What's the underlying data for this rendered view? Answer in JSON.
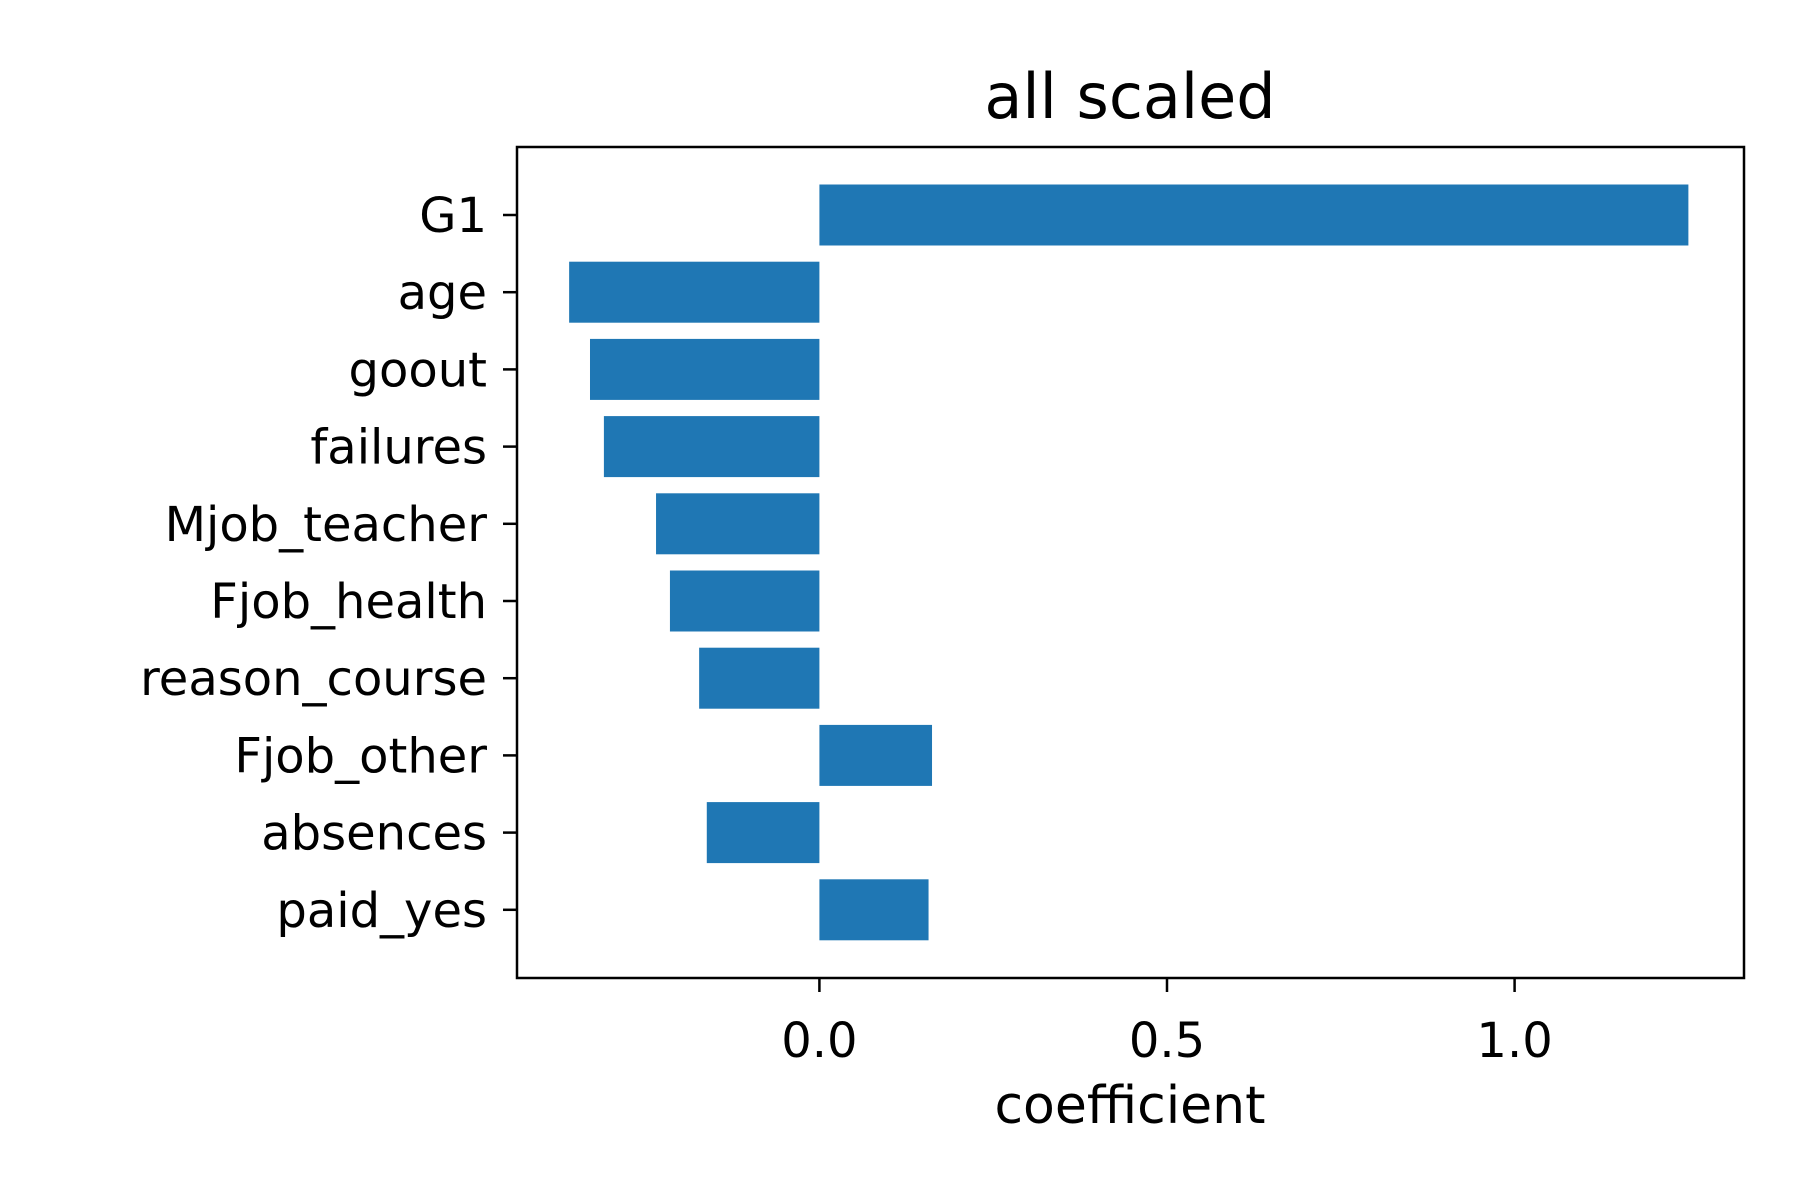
{
  "chart_data": {
    "type": "bar",
    "orientation": "horizontal",
    "title": "all scaled",
    "xlabel": "coefficient",
    "ylabel": "",
    "categories": [
      "G1",
      "age",
      "goout",
      "failures",
      "Mjob_teacher",
      "Fjob_health",
      "reason_course",
      "Fjob_other",
      "absences",
      "paid_yes"
    ],
    "values": [
      1.25,
      -0.36,
      -0.33,
      -0.31,
      -0.235,
      -0.215,
      -0.173,
      0.162,
      -0.162,
      0.157
    ],
    "xlim": [
      -0.435,
      1.33
    ],
    "xticks": [
      0.0,
      0.5,
      1.0
    ],
    "xtick_labels": [
      "0.0",
      "0.5",
      "1.0"
    ],
    "grid": false,
    "bar_color": "#1f77b4"
  }
}
